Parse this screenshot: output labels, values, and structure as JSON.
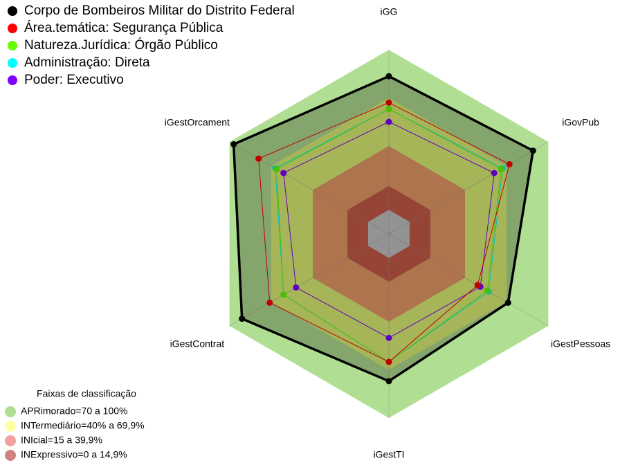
{
  "chart_data": {
    "type": "radar",
    "categories": [
      "iGG",
      "iGovPub",
      "iGestPessoas",
      "iGestTI",
      "iGestContrat",
      "iGestOrcament"
    ],
    "rlim": [
      -15,
      100
    ],
    "series": [
      {
        "name": "Corpo de Bombeiros Militar do Distrito Federal",
        "color": "#000000",
        "filled": true,
        "values": [
          83.5,
          89,
          71,
          77,
          91,
          97
        ]
      },
      {
        "name": "Área.temática: Segurança Pública",
        "color": "#ff0000",
        "values": [
          67,
          72,
          49,
          65,
          71,
          79
        ]
      },
      {
        "name": "Natureza.Jurídica: Órgão Público",
        "color": "#66ff00",
        "values": [
          63,
          66,
          56,
          65,
          61,
          66
        ]
      },
      {
        "name": "Administração: Direta",
        "color": "#00ffff",
        "values": [
          63,
          67,
          57,
          65,
          61,
          67
        ]
      },
      {
        "name": "Poder: Executivo",
        "color": "#8000ff",
        "values": [
          55,
          61,
          51,
          50,
          52,
          61
        ]
      }
    ],
    "bands_title": "Faixas de classificação",
    "bands": [
      {
        "label": "APRimorado=70 a 100%",
        "min": 70,
        "max": 100,
        "color": "#7cc84a"
      },
      {
        "label": "INTermediário=40% a 69,9%",
        "min": 40,
        "max": 69.9,
        "color": "#ffff66"
      },
      {
        "label": "INIcial=15 a 39,9%",
        "min": 15,
        "max": 39.9,
        "color": "#ee6060"
      },
      {
        "label": "INExpressivo=0 a 14,9%",
        "min": 0,
        "max": 14.9,
        "color": "#b03030"
      }
    ]
  }
}
